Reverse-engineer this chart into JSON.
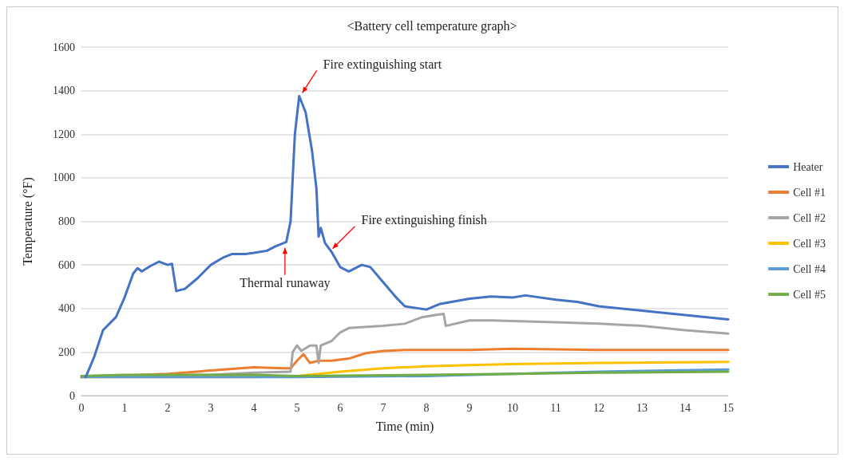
{
  "chart_data": {
    "type": "line",
    "title": "<Battery cell temperature graph>",
    "xlabel": "Time (min)",
    "ylabel": "Temperature (°F)",
    "xlim": [
      0,
      15
    ],
    "xticks": [
      0,
      1,
      2,
      3,
      4,
      5,
      6,
      7,
      8,
      9,
      10,
      11,
      12,
      13,
      14,
      15
    ],
    "ylim": [
      0,
      1600
    ],
    "yticks": [
      0,
      200,
      400,
      600,
      800,
      1000,
      1200,
      1400,
      1600
    ],
    "grid": "y",
    "legend": "right",
    "marker": "none",
    "line_style": "solid",
    "annotations": [
      {
        "text": "Fire extinguishing start",
        "x": 5.05,
        "y": 1375
      },
      {
        "text": "Fire extinguishing finish",
        "x": 5.75,
        "y": 660
      },
      {
        "text": "Thermal runaway",
        "x": 4.72,
        "y": 700
      }
    ],
    "series": [
      {
        "name": "Heater",
        "color": "#4472c4",
        "x": [
          0.1,
          0.3,
          0.5,
          0.8,
          1.0,
          1.2,
          1.3,
          1.4,
          1.6,
          1.8,
          2.0,
          2.1,
          2.2,
          2.4,
          2.7,
          3.0,
          3.3,
          3.5,
          3.8,
          4.0,
          4.3,
          4.5,
          4.75,
          4.85,
          4.95,
          5.05,
          5.2,
          5.35,
          5.45,
          5.5,
          5.55,
          5.65,
          5.8,
          6.0,
          6.2,
          6.5,
          6.7,
          7.0,
          7.3,
          7.5,
          8.0,
          8.3,
          9.0,
          9.5,
          10.0,
          10.3,
          11.0,
          11.5,
          12.0,
          13.0,
          14.0,
          15.0
        ],
        "values": [
          85,
          180,
          300,
          360,
          450,
          560,
          585,
          570,
          595,
          615,
          600,
          605,
          480,
          490,
          540,
          600,
          635,
          650,
          650,
          655,
          665,
          685,
          705,
          800,
          1200,
          1375,
          1300,
          1120,
          950,
          730,
          770,
          700,
          660,
          590,
          570,
          600,
          590,
          520,
          450,
          410,
          395,
          420,
          445,
          455,
          450,
          460,
          440,
          430,
          410,
          390,
          370,
          350
        ]
      },
      {
        "name": "Cell #1",
        "color": "#ed7d31",
        "x": [
          0,
          2,
          3,
          4,
          4.7,
          4.85,
          5.0,
          5.15,
          5.3,
          5.5,
          5.8,
          6.2,
          6.6,
          7.0,
          7.5,
          9,
          10,
          12,
          15
        ],
        "values": [
          85,
          100,
          115,
          130,
          125,
          125,
          160,
          190,
          150,
          160,
          160,
          170,
          195,
          205,
          210,
          210,
          215,
          210,
          210
        ]
      },
      {
        "name": "Cell #2",
        "color": "#a5a5a5",
        "x": [
          0,
          3,
          4,
          4.85,
          4.9,
          5.0,
          5.1,
          5.3,
          5.45,
          5.5,
          5.55,
          5.8,
          6.0,
          6.2,
          7.0,
          7.5,
          7.9,
          8.2,
          8.4,
          8.45,
          9.0,
          9.5,
          10.5,
          12,
          13,
          14,
          15
        ],
        "values": [
          90,
          95,
          105,
          110,
          200,
          230,
          205,
          230,
          230,
          150,
          230,
          250,
          290,
          310,
          320,
          330,
          360,
          370,
          375,
          320,
          345,
          345,
          340,
          330,
          320,
          300,
          285
        ]
      },
      {
        "name": "Cell #3",
        "color": "#ffc000",
        "x": [
          0,
          4,
          5,
          6,
          7,
          8,
          9,
          10,
          12,
          15
        ],
        "values": [
          85,
          85,
          90,
          110,
          125,
          135,
          140,
          145,
          150,
          155
        ]
      },
      {
        "name": "Cell #4",
        "color": "#5b9bd5",
        "x": [
          0,
          5,
          8,
          10,
          12,
          15
        ],
        "values": [
          85,
          85,
          90,
          100,
          110,
          120
        ]
      },
      {
        "name": "Cell #5",
        "color": "#70ad47",
        "x": [
          0,
          1,
          4,
          5,
          8,
          10,
          12,
          15
        ],
        "values": [
          90,
          95,
          95,
          90,
          95,
          100,
          105,
          110
        ]
      }
    ]
  }
}
